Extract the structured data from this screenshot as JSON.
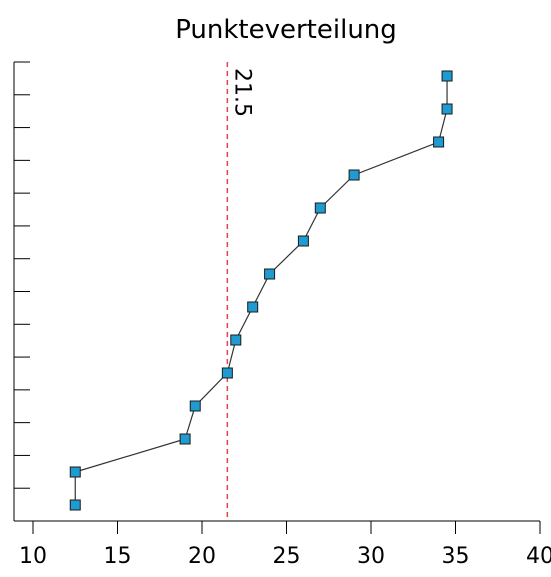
{
  "chart_data": {
    "type": "scatter",
    "title": "Punkteverteilung",
    "xlabel": "",
    "ylabel": "",
    "xlim": [
      10,
      40
    ],
    "x_ticks": [
      10,
      15,
      20,
      25,
      30,
      35,
      40
    ],
    "x_tick_labels": [
      "10",
      "15",
      "20",
      "25",
      "30",
      "35",
      "40"
    ],
    "y_tick_count": 15,
    "grid": false,
    "legend": "none",
    "series": [
      {
        "x": [
          12.5,
          12.5,
          19,
          19.6,
          21.5,
          22,
          23,
          24,
          26,
          27,
          29,
          34,
          34.5,
          34.5
        ],
        "marker": "square",
        "connected": true,
        "color": "#1f9bd1",
        "line_color": "#333333"
      }
    ],
    "reference_line": {
      "x": 21.5,
      "label": "21.5",
      "style": "dashed",
      "color": "#e0454b"
    }
  }
}
